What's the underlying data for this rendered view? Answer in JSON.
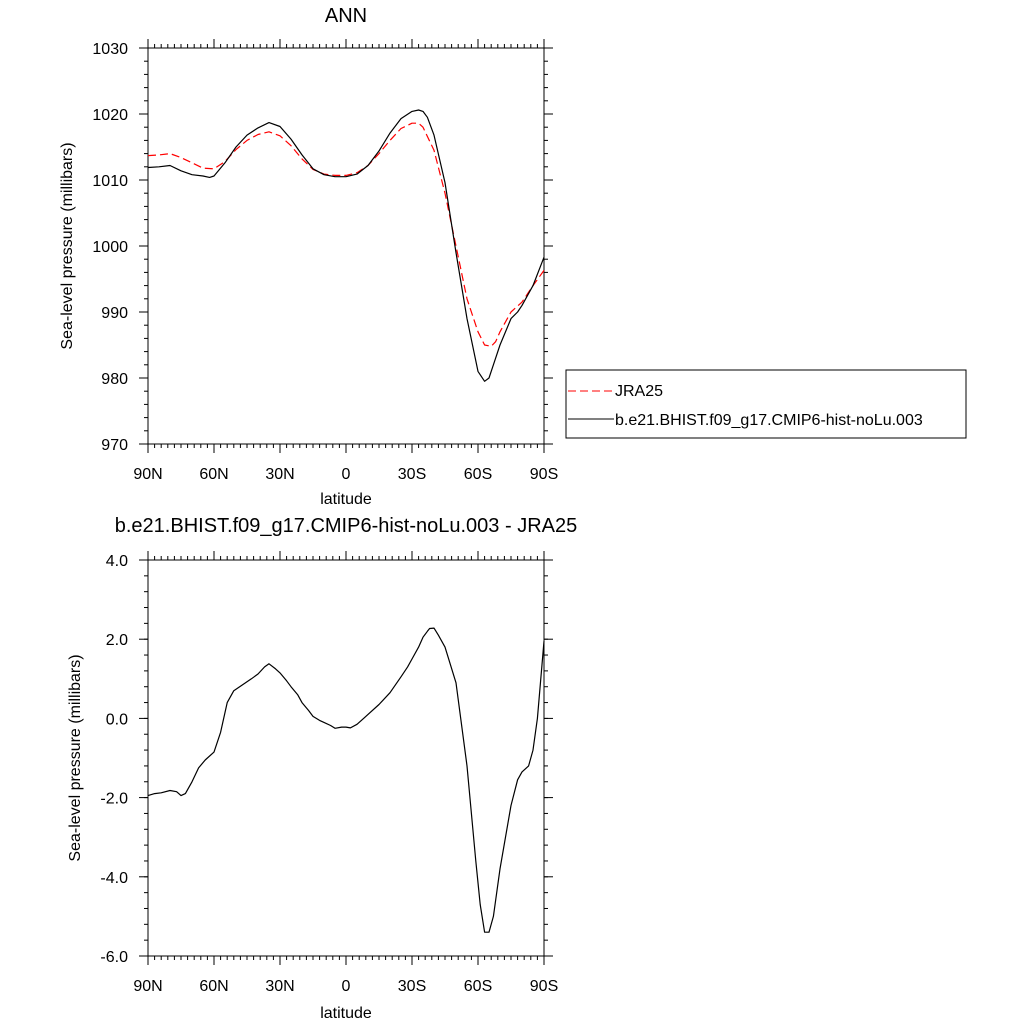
{
  "chart_data": [
    {
      "type": "line",
      "title": "ANN",
      "xlabel": "latitude",
      "ylabel": "Sea-level pressure (millibars)",
      "xlim": [
        90,
        -90
      ],
      "ylim": [
        970,
        1030
      ],
      "x_ticks": [
        90,
        60,
        30,
        0,
        -30,
        -60,
        -90
      ],
      "x_tick_labels": [
        "90N",
        "60N",
        "30N",
        "0",
        "30S",
        "60S",
        "90S"
      ],
      "y_ticks": [
        970,
        980,
        990,
        1000,
        1010,
        1020,
        1030
      ],
      "y_tick_labels": [
        "970",
        "980",
        "990",
        "1000",
        "1010",
        "1020",
        "1030"
      ],
      "legend_position": "right",
      "series": [
        {
          "name": "JRA25",
          "color": "#ff0000",
          "style": "dashed",
          "x": [
            90,
            85,
            80,
            75,
            70,
            65,
            60,
            55,
            50,
            45,
            40,
            35,
            30,
            25,
            20,
            15,
            10,
            5,
            0,
            -5,
            -10,
            -15,
            -20,
            -25,
            -30,
            -33,
            -35,
            -40,
            -45,
            -50,
            -55,
            -60,
            -63,
            -66,
            -68,
            -70,
            -75,
            -80,
            -85,
            -90
          ],
          "y": [
            1013.7,
            1013.8,
            1014.0,
            1013.4,
            1012.6,
            1011.8,
            1011.7,
            1012.8,
            1014.6,
            1016.0,
            1016.9,
            1017.3,
            1016.7,
            1015.2,
            1013.2,
            1011.6,
            1010.9,
            1010.7,
            1010.7,
            1011.1,
            1012.2,
            1014.0,
            1016.0,
            1017.8,
            1018.6,
            1018.6,
            1018.0,
            1014.5,
            1008.0,
            1000.0,
            992.0,
            987.0,
            985.0,
            984.8,
            985.5,
            987.0,
            990.0,
            991.5,
            994.0,
            996.3
          ]
        },
        {
          "name": "b.e21.BHIST.f09_g17.CMIP6-hist-noLu.003",
          "color": "#000000",
          "style": "solid",
          "x": [
            90,
            85,
            80,
            75,
            70,
            65,
            62,
            60,
            55,
            50,
            45,
            40,
            35,
            30,
            25,
            20,
            15,
            10,
            5,
            0,
            -5,
            -10,
            -15,
            -20,
            -25,
            -30,
            -33,
            -35,
            -37,
            -40,
            -45,
            -50,
            -55,
            -60,
            -63,
            -65,
            -67,
            -70,
            -75,
            -78,
            -80,
            -85,
            -90
          ],
          "y": [
            1011.9,
            1012.0,
            1012.2,
            1011.4,
            1010.8,
            1010.6,
            1010.4,
            1010.6,
            1012.6,
            1015.0,
            1016.8,
            1017.9,
            1018.7,
            1018.1,
            1016.2,
            1013.8,
            1011.7,
            1010.8,
            1010.5,
            1010.5,
            1010.9,
            1012.2,
            1014.4,
            1017.1,
            1019.3,
            1020.4,
            1020.6,
            1020.4,
            1019.5,
            1016.8,
            1009.6,
            999.0,
            989.0,
            981.0,
            979.5,
            980.0,
            982.0,
            985.0,
            989.0,
            990.0,
            991.0,
            994.0,
            998.3
          ]
        }
      ]
    },
    {
      "type": "line",
      "title": "b.e21.BHIST.f09_g17.CMIP6-hist-noLu.003 - JRA25",
      "xlabel": "latitude",
      "ylabel": "Sea-level pressure (millibars)",
      "xlim": [
        90,
        -90
      ],
      "ylim": [
        -6.0,
        4.0
      ],
      "x_ticks": [
        90,
        60,
        30,
        0,
        -30,
        -60,
        -90
      ],
      "x_tick_labels": [
        "90N",
        "60N",
        "30N",
        "0",
        "30S",
        "60S",
        "90S"
      ],
      "y_ticks": [
        -6.0,
        -4.0,
        -2.0,
        0.0,
        2.0,
        4.0
      ],
      "y_tick_labels": [
        "-6.0",
        "-4.0",
        "-2.0",
        "0.0",
        "2.0",
        "4.0"
      ],
      "series": [
        {
          "color": "#000000",
          "style": "solid",
          "x": [
            90,
            87,
            84,
            80,
            77,
            75,
            73,
            70,
            67,
            64,
            60,
            57,
            54,
            51,
            47,
            43,
            40,
            37,
            35,
            32,
            30,
            27,
            25,
            22,
            20,
            17,
            15,
            12,
            10,
            7,
            5,
            2,
            0,
            -2,
            -5,
            -8,
            -10,
            -15,
            -20,
            -25,
            -28,
            -30,
            -33,
            -35,
            -37,
            -38,
            -40,
            -42,
            -45,
            -50,
            -55,
            -59,
            -61,
            -63,
            -65,
            -67,
            -70,
            -75,
            -78,
            -80,
            -83,
            -85,
            -87,
            -90
          ],
          "y": [
            -1.95,
            -1.9,
            -1.88,
            -1.82,
            -1.85,
            -1.95,
            -1.9,
            -1.6,
            -1.25,
            -1.05,
            -0.85,
            -0.35,
            0.4,
            0.7,
            0.85,
            1.0,
            1.12,
            1.3,
            1.38,
            1.25,
            1.15,
            0.95,
            0.8,
            0.6,
            0.4,
            0.2,
            0.05,
            -0.05,
            -0.1,
            -0.18,
            -0.25,
            -0.22,
            -0.22,
            -0.24,
            -0.15,
            0.0,
            0.1,
            0.35,
            0.65,
            1.05,
            1.3,
            1.5,
            1.8,
            2.05,
            2.2,
            2.27,
            2.28,
            2.1,
            1.8,
            0.9,
            -1.2,
            -3.6,
            -4.7,
            -5.4,
            -5.4,
            -5.0,
            -3.8,
            -2.2,
            -1.55,
            -1.35,
            -1.2,
            -0.8,
            0.0,
            1.95
          ]
        }
      ]
    }
  ]
}
